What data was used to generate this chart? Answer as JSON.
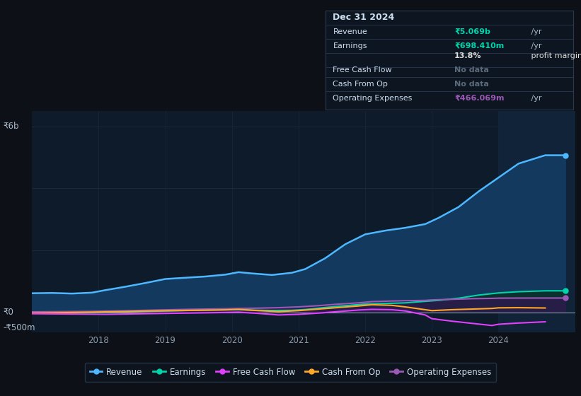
{
  "bg_color": "#0d1117",
  "plot_bg_color": "#0d1b2a",
  "grid_color": "#1a2a3a",
  "x_ticks": [
    2018,
    2019,
    2020,
    2021,
    2022,
    2023,
    2024
  ],
  "ylim_min": -650000000,
  "ylim_max": 6500000000,
  "revenue_color": "#4db8ff",
  "revenue_fill": "#133a5e",
  "earnings_color": "#00d4aa",
  "free_cash_flow_color": "#e040fb",
  "cash_from_op_color": "#ffa726",
  "operating_expenses_color": "#9b59b6",
  "operating_expenses_fill": "#2d1b4e",
  "legend_items": [
    "Revenue",
    "Earnings",
    "Free Cash Flow",
    "Cash From Op",
    "Operating Expenses"
  ],
  "legend_colors": [
    "#4db8ff",
    "#00d4aa",
    "#e040fb",
    "#ffa726",
    "#9b59b6"
  ],
  "revenue_data_x": [
    2017.0,
    2017.3,
    2017.6,
    2017.9,
    2018.1,
    2018.4,
    2018.7,
    2019.0,
    2019.3,
    2019.6,
    2019.9,
    2020.1,
    2020.3,
    2020.6,
    2020.9,
    2021.1,
    2021.4,
    2021.7,
    2022.0,
    2022.3,
    2022.6,
    2022.9,
    2023.1,
    2023.4,
    2023.7,
    2024.0,
    2024.3,
    2024.7,
    2025.0
  ],
  "revenue_data_y": [
    620000000,
    630000000,
    610000000,
    640000000,
    720000000,
    830000000,
    950000000,
    1080000000,
    1120000000,
    1160000000,
    1220000000,
    1300000000,
    1260000000,
    1210000000,
    1280000000,
    1400000000,
    1750000000,
    2200000000,
    2520000000,
    2640000000,
    2730000000,
    2850000000,
    3050000000,
    3400000000,
    3900000000,
    4350000000,
    4800000000,
    5069000000,
    5069000000
  ],
  "earnings_data_x": [
    2017.0,
    2017.3,
    2017.6,
    2017.9,
    2018.1,
    2018.4,
    2018.7,
    2019.0,
    2019.3,
    2019.6,
    2019.9,
    2020.1,
    2020.3,
    2020.6,
    2020.9,
    2021.1,
    2021.4,
    2021.7,
    2022.0,
    2022.3,
    2022.6,
    2022.9,
    2023.1,
    2023.4,
    2023.7,
    2024.0,
    2024.3,
    2024.7,
    2025.0
  ],
  "earnings_data_y": [
    -20000000,
    -15000000,
    -10000000,
    0,
    10000000,
    20000000,
    35000000,
    50000000,
    65000000,
    75000000,
    85000000,
    90000000,
    75000000,
    65000000,
    70000000,
    95000000,
    160000000,
    220000000,
    270000000,
    290000000,
    310000000,
    360000000,
    390000000,
    460000000,
    560000000,
    630000000,
    670000000,
    698000000,
    698000000
  ],
  "free_cash_flow_data_x": [
    2017.0,
    2017.3,
    2017.6,
    2017.9,
    2018.1,
    2018.4,
    2018.7,
    2019.0,
    2019.3,
    2019.6,
    2019.9,
    2020.1,
    2020.4,
    2020.7,
    2021.0,
    2021.3,
    2021.6,
    2021.9,
    2022.1,
    2022.4,
    2022.6,
    2022.9,
    2023.0,
    2023.3,
    2023.6,
    2023.9,
    2024.0,
    2024.3,
    2024.7
  ],
  "free_cash_flow_data_y": [
    -40000000,
    -45000000,
    -50000000,
    -55000000,
    -60000000,
    -50000000,
    -40000000,
    -30000000,
    -20000000,
    -10000000,
    0,
    10000000,
    -30000000,
    -80000000,
    -60000000,
    -20000000,
    30000000,
    80000000,
    100000000,
    90000000,
    50000000,
    -80000000,
    -200000000,
    -280000000,
    -350000000,
    -420000000,
    -380000000,
    -340000000,
    -300000000
  ],
  "cash_from_op_data_x": [
    2017.0,
    2017.3,
    2017.6,
    2017.9,
    2018.1,
    2018.4,
    2018.7,
    2019.0,
    2019.3,
    2019.6,
    2019.9,
    2020.1,
    2020.4,
    2020.7,
    2021.0,
    2021.3,
    2021.6,
    2021.9,
    2022.1,
    2022.4,
    2022.6,
    2022.9,
    2023.0,
    2023.3,
    2023.6,
    2023.9,
    2024.0,
    2024.3,
    2024.7
  ],
  "cash_from_op_data_y": [
    -20000000,
    -10000000,
    0,
    10000000,
    20000000,
    30000000,
    45000000,
    55000000,
    65000000,
    75000000,
    85000000,
    100000000,
    60000000,
    30000000,
    60000000,
    110000000,
    160000000,
    210000000,
    250000000,
    230000000,
    180000000,
    90000000,
    60000000,
    90000000,
    110000000,
    130000000,
    150000000,
    155000000,
    145000000
  ],
  "op_expenses_data_x": [
    2017.0,
    2017.3,
    2017.6,
    2017.9,
    2018.1,
    2018.4,
    2018.7,
    2019.0,
    2019.3,
    2019.6,
    2019.9,
    2020.1,
    2020.4,
    2020.7,
    2021.0,
    2021.3,
    2021.6,
    2021.9,
    2022.1,
    2022.4,
    2022.6,
    2022.9,
    2023.0,
    2023.3,
    2023.6,
    2023.9,
    2024.0,
    2024.3,
    2024.7,
    2025.0
  ],
  "op_expenses_data_y": [
    20000000,
    25000000,
    30000000,
    35000000,
    45000000,
    55000000,
    70000000,
    85000000,
    100000000,
    110000000,
    120000000,
    130000000,
    140000000,
    155000000,
    180000000,
    220000000,
    270000000,
    310000000,
    350000000,
    370000000,
    380000000,
    390000000,
    405000000,
    425000000,
    445000000,
    455000000,
    462000000,
    465000000,
    466000000,
    466000000
  ]
}
